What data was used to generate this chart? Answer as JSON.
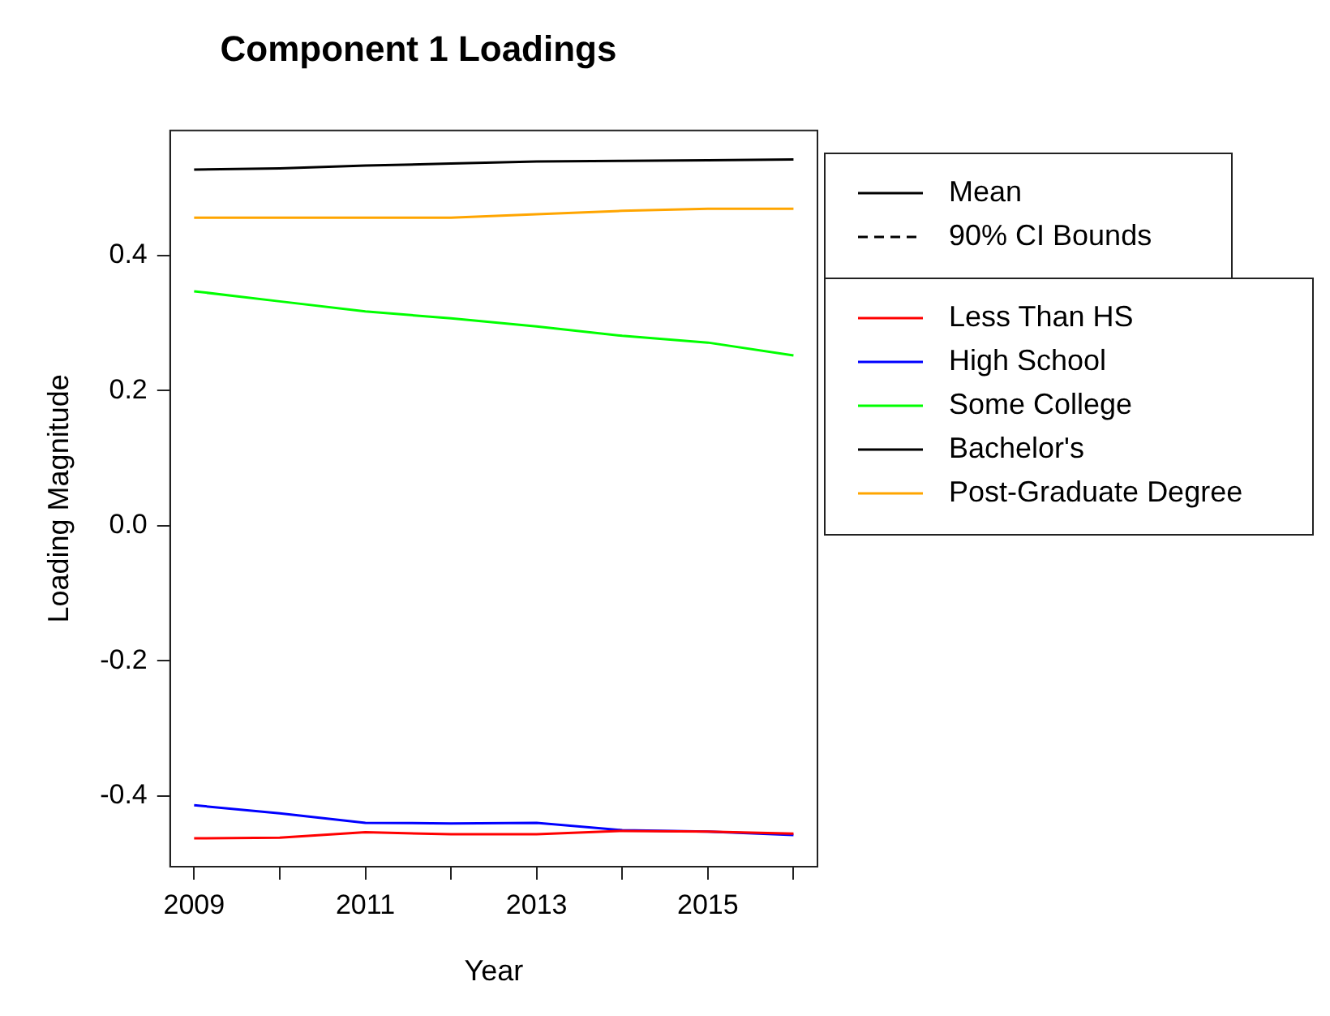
{
  "chart_data": {
    "type": "line",
    "title": "Component 1 Loadings",
    "xlabel": "Year",
    "ylabel": "Loading Magnitude",
    "x": [
      2009,
      2010,
      2011,
      2012,
      2013,
      2014,
      2015,
      2016
    ],
    "xlim": [
      2008.72,
      2016.28
    ],
    "xticks": [
      2009,
      {
        "value": 2010,
        "label": null
      },
      2011,
      {
        "value": 2012,
        "label": null
      },
      2013,
      {
        "value": 2014,
        "label": null
      },
      2015,
      {
        "value": 2016,
        "label": null
      }
    ],
    "ylim": [
      -0.505,
      0.585
    ],
    "yticks": [
      -0.4,
      -0.2,
      {
        "value": 0,
        "label": "0.0"
      },
      0.2,
      0.4
    ],
    "grid": false,
    "legend": "right",
    "line_style": "solid",
    "marker": "none",
    "series": [
      {
        "name": "Mean",
        "color": "#000000",
        "values": [
          null,
          null,
          null,
          null,
          null,
          null,
          null,
          null
        ]
      },
      {
        "name": "90% CI Bounds",
        "color": "#000000",
        "line_style": "dashed",
        "values": [
          null,
          null,
          null,
          null,
          null,
          null,
          null,
          null
        ]
      },
      {
        "name": "Less Than HS",
        "color": "#ff0000",
        "values": [
          -0.463,
          -0.462,
          -0.454,
          -0.457,
          -0.457,
          -0.452,
          -0.453,
          -0.456
        ]
      },
      {
        "name": "High School",
        "color": "#0000ff",
        "values": [
          -0.414,
          -0.426,
          -0.44,
          -0.441,
          -0.44,
          -0.451,
          -0.453,
          -0.458
        ]
      },
      {
        "name": "Some College",
        "color": "#00ff00",
        "values": [
          0.347,
          0.332,
          0.317,
          0.307,
          0.295,
          0.281,
          0.271,
          0.252
        ]
      },
      {
        "name": "Bachelor's",
        "color": "#000000",
        "values": [
          0.527,
          0.529,
          0.533,
          0.536,
          0.539,
          0.54,
          0.541,
          0.542
        ]
      },
      {
        "name": "Post-Graduate Degree",
        "color": "#ffa500",
        "values": [
          0.456,
          0.456,
          0.456,
          0.456,
          0.461,
          0.466,
          0.469,
          0.469
        ]
      }
    ]
  }
}
